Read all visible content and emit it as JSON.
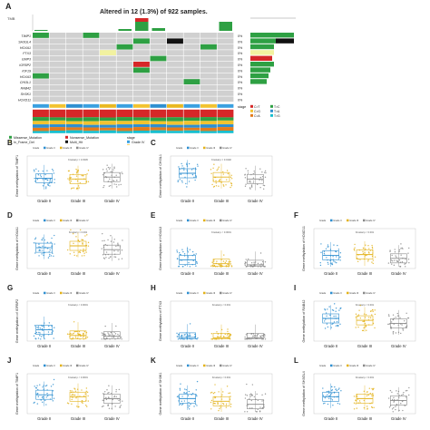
{
  "colors": {
    "grade2": "#2f8fd0",
    "grade3": "#e3b21a",
    "grade4": "#8a8a8a",
    "missense": "#2ea043",
    "inframe": "#f2f2a0",
    "multihit": "#111111",
    "nonsense": "#d62728",
    "gridcell": "#d0d0d0"
  },
  "panel_a": {
    "label": "A",
    "title": "Altered in 12 (1.3%) of 922 samples.",
    "tmb_axis_label": "TMB",
    "genes": [
      "TIMP1",
      "SH3GL4",
      "HOXA1",
      "FTX3",
      "EMP3",
      "IGFBP2",
      "KIF19",
      "HOXA3",
      "CHI3L1",
      "RAB42",
      "SH3K1",
      "HOXD11"
    ],
    "percents": [
      "0%",
      "0%",
      "0%",
      "0%",
      "0%",
      "0%",
      "0%",
      "0%",
      "0%",
      "0%",
      "0%",
      "0%"
    ],
    "legend": [
      "Missense_Mutation",
      "Nonsense_Mutation",
      "In_Frame_Del",
      "Multi_Hit"
    ],
    "stage_label": "stage",
    "stage_legend": [
      "Grade IV",
      "Grade III",
      "Grade II"
    ],
    "titv_legend": [
      "C>T",
      "T>C",
      "C>G",
      "T>A",
      "C>A",
      "T>G"
    ],
    "mutated_cells": [
      {
        "r": 0,
        "c": 0,
        "t": "missense"
      },
      {
        "r": 0,
        "c": 3,
        "t": "missense"
      },
      {
        "r": 1,
        "c": 8,
        "t": "multihit"
      },
      {
        "r": 1,
        "c": 6,
        "t": "missense"
      },
      {
        "r": 2,
        "c": 5,
        "t": "missense"
      },
      {
        "r": 2,
        "c": 10,
        "t": "missense"
      },
      {
        "r": 3,
        "c": 4,
        "t": "inframe"
      },
      {
        "r": 4,
        "c": 7,
        "t": "missense"
      },
      {
        "r": 5,
        "c": 6,
        "t": "nonsense"
      },
      {
        "r": 6,
        "c": 6,
        "t": "missense"
      },
      {
        "r": 7,
        "c": 0,
        "t": "missense"
      },
      {
        "r": 8,
        "c": 9,
        "t": "missense"
      }
    ]
  },
  "box_panels": [
    {
      "label": "B",
      "gene": "TIMP1",
      "pval": "Kruskal p = 0.0345"
    },
    {
      "label": "C",
      "gene": "CHI3L1",
      "pval": "Kruskal p = 0.0192"
    },
    {
      "label": "D",
      "gene": "HOXA1",
      "pval": "Kruskal p = 0.002"
    },
    {
      "label": "E",
      "gene": "HOXA3",
      "pval": "Kruskal p < 0.0001"
    },
    {
      "label": "F",
      "gene": "HOXD11",
      "pval": "Kruskal p < 0.001"
    },
    {
      "label": "G",
      "gene": "IGFBP2",
      "pval": "Kruskal p < 0.0001"
    },
    {
      "label": "H",
      "gene": "FTX3",
      "pval": "Kruskal p < 0.001"
    },
    {
      "label": "I",
      "gene": "RAB42",
      "pval": "Kruskal p < 0.001"
    },
    {
      "label": "J",
      "gene": "TIMP1",
      "pval": "Kruskal p < 0.0001"
    },
    {
      "label": "K",
      "gene": "SH3K1",
      "pval": "Kruskal p < 0.001"
    },
    {
      "label": "L",
      "gene": "SH3GL4",
      "pval": "Kruskal p < 0.001"
    }
  ],
  "box_common": {
    "ylabel_prefix": "Gene methylation of ",
    "groups": [
      "Grade II",
      "Grade III",
      "Grade IV"
    ],
    "legend_items": [
      "Grade II",
      "Grade III",
      "Grade IV"
    ],
    "legend_title": "Grade"
  },
  "chart_data": [
    {
      "type": "box",
      "panel": "B",
      "categories": [
        "Grade II",
        "Grade III",
        "Grade IV"
      ],
      "medians": [
        0.42,
        0.4,
        0.45
      ]
    },
    {
      "type": "box",
      "panel": "C",
      "categories": [
        "Grade II",
        "Grade III",
        "Grade IV"
      ],
      "medians": [
        0.55,
        0.45,
        0.4
      ]
    },
    {
      "type": "box",
      "panel": "D",
      "categories": [
        "Grade II",
        "Grade III",
        "Grade IV"
      ],
      "medians": [
        0.5,
        0.55,
        0.45
      ]
    },
    {
      "type": "box",
      "panel": "E",
      "categories": [
        "Grade II",
        "Grade III",
        "Grade IV"
      ],
      "medians": [
        0.18,
        0.08,
        0.05
      ]
    },
    {
      "type": "box",
      "panel": "F",
      "categories": [
        "Grade II",
        "Grade III",
        "Grade IV"
      ],
      "medians": [
        0.3,
        0.32,
        0.22
      ]
    },
    {
      "type": "box",
      "panel": "G",
      "categories": [
        "Grade II",
        "Grade III",
        "Grade IV"
      ],
      "medians": [
        0.25,
        0.1,
        0.08
      ]
    },
    {
      "type": "box",
      "panel": "H",
      "categories": [
        "Grade II",
        "Grade III",
        "Grade IV"
      ],
      "medians": [
        0.05,
        0.04,
        0.04
      ]
    },
    {
      "type": "box",
      "panel": "I",
      "categories": [
        "Grade II",
        "Grade III",
        "Grade IV"
      ],
      "medians": [
        0.55,
        0.5,
        0.42
      ]
    },
    {
      "type": "box",
      "panel": "J",
      "categories": [
        "Grade II",
        "Grade III",
        "Grade IV"
      ],
      "medians": [
        0.45,
        0.4,
        0.35
      ]
    },
    {
      "type": "box",
      "panel": "K",
      "categories": [
        "Grade II",
        "Grade III",
        "Grade IV"
      ],
      "medians": [
        0.35,
        0.28,
        0.2
      ]
    },
    {
      "type": "box",
      "panel": "L",
      "categories": [
        "Grade II",
        "Grade III",
        "Grade IV"
      ],
      "medians": [
        0.4,
        0.35,
        0.3
      ]
    }
  ]
}
